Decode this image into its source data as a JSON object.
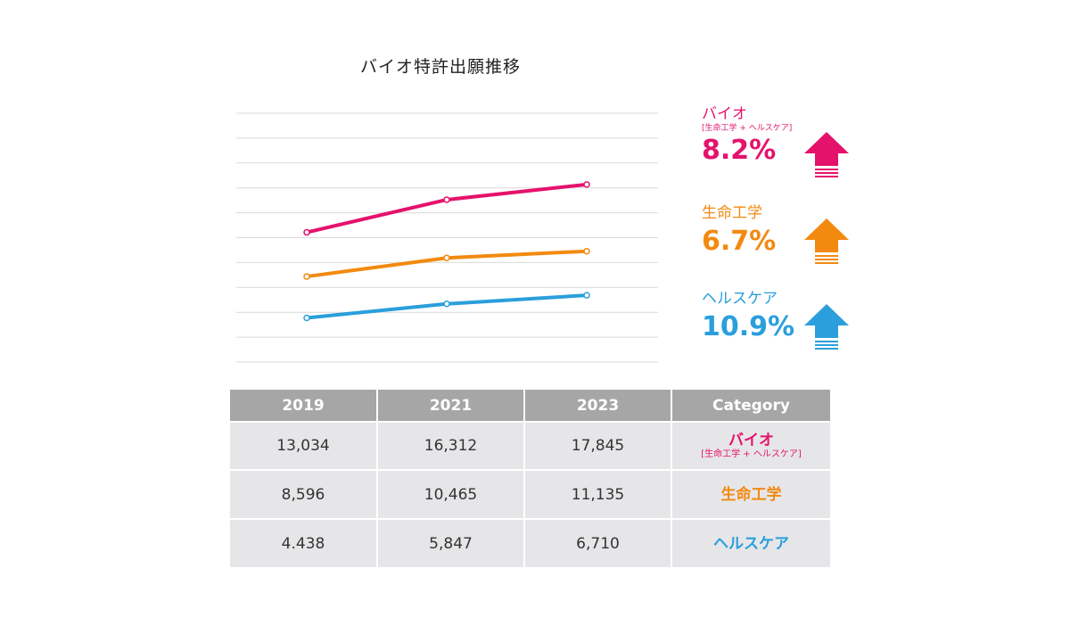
{
  "chart_data": {
    "type": "line",
    "title": "バイオ特許出願推移",
    "x": [
      "2019",
      "2021",
      "2023"
    ],
    "series": [
      {
        "name": "バイオ",
        "subtitle": "[生命工学 + ヘルスケア]",
        "values": [
          13034,
          16312,
          17845
        ],
        "growth": "8.2%",
        "color": "#e5126c"
      },
      {
        "name": "生命工学",
        "values": [
          8596,
          10465,
          11135
        ],
        "growth": "6.7%",
        "color": "#f28a10"
      },
      {
        "name": "ヘルスケア",
        "values": [
          4438,
          5847,
          6710
        ],
        "growth": "10.9%",
        "color": "#2a9fdc"
      }
    ],
    "grid": true,
    "legend": "right"
  },
  "table": {
    "headers": [
      "2019",
      "2021",
      "2023",
      "Category"
    ],
    "rows": [
      {
        "cells": [
          "13,034",
          "16,312",
          "17,845"
        ],
        "category": "バイオ",
        "category_sub": "[生命工学 + ヘルスケア]"
      },
      {
        "cells": [
          "8,596",
          "10,465",
          "11,135"
        ],
        "category": "生命工学"
      },
      {
        "cells": [
          "4.438",
          "5,847",
          "6,710"
        ],
        "category": "ヘルスケア"
      }
    ]
  }
}
